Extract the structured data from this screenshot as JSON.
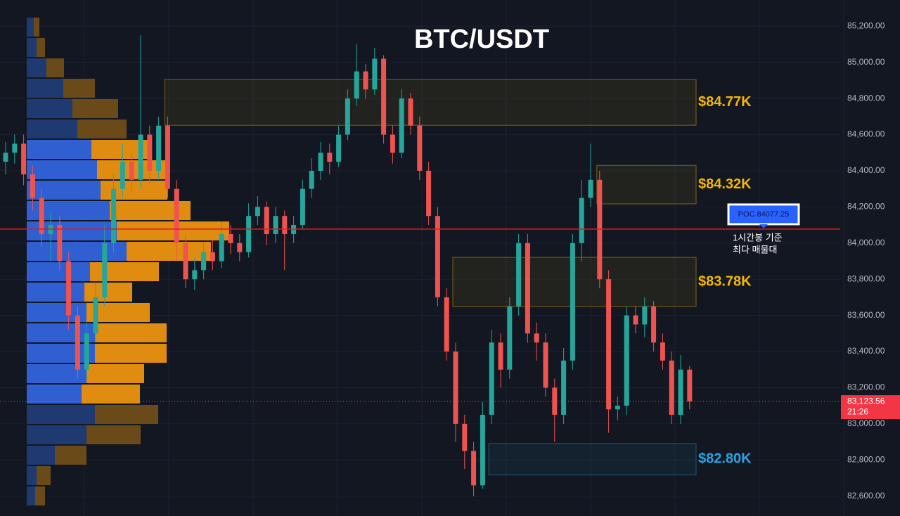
{
  "chart_data": {
    "type": "candlestick",
    "title": "BTC/USDT",
    "ylim": [
      82490,
      85345
    ],
    "yticks": [
      {
        "value": 82600,
        "label": "82,600.00"
      },
      {
        "value": 82800,
        "label": "82,800.00"
      },
      {
        "value": 83000,
        "label": "83,000.00"
      },
      {
        "value": 83200,
        "label": "83,200.00"
      },
      {
        "value": 83400,
        "label": "83,400.00"
      },
      {
        "value": 83600,
        "label": "83,600.00"
      },
      {
        "value": 83800,
        "label": "83,800.00"
      },
      {
        "value": 84000,
        "label": "84,000.00"
      },
      {
        "value": 84200,
        "label": "84,200.00"
      },
      {
        "value": 84400,
        "label": "84,400.00"
      },
      {
        "value": 84600,
        "label": "84,600.00"
      },
      {
        "value": 84800,
        "label": "84,800.00"
      },
      {
        "value": 85000,
        "label": "85,000.00"
      },
      {
        "value": 85200,
        "label": "85,200.00"
      }
    ],
    "up_color": "#26a69a",
    "down_color": "#ef5350",
    "open": [
      84450,
      84500,
      84550,
      84380,
      84250,
      84050,
      84100,
      83900,
      83600,
      83300,
      83500,
      83700,
      84000,
      84300,
      84450,
      84350,
      84600,
      84400,
      84650,
      84300,
      84000,
      83800,
      83850,
      83950,
      83900,
      84050,
      84000,
      83950,
      84150,
      84200,
      84050,
      84150,
      84050,
      84100,
      84300,
      84400,
      84500,
      84450,
      84600,
      84800,
      84950,
      84850,
      85020,
      84600,
      84500,
      84800,
      84650,
      84400,
      84150,
      83700,
      83400,
      83000,
      82850,
      82660,
      83050,
      83450,
      83300,
      83650,
      84000,
      83500,
      83450,
      83200,
      83050,
      83350,
      84000,
      84250,
      84350,
      83800,
      83080,
      83100,
      83600,
      83550,
      83650,
      83450,
      83350,
      83050,
      83300
    ],
    "high": [
      84560,
      84600,
      84600,
      84430,
      84300,
      84170,
      84150,
      83950,
      83650,
      83560,
      83780,
      84100,
      84380,
      84550,
      84500,
      85150,
      84650,
      84700,
      84700,
      84350,
      84050,
      83920,
      84000,
      84020,
      84120,
      84100,
      84050,
      84220,
      84260,
      84230,
      84200,
      84180,
      84150,
      84350,
      84470,
      84560,
      84550,
      84650,
      84850,
      85100,
      84990,
      85080,
      85040,
      84650,
      84850,
      84830,
      84700,
      84450,
      84200,
      83750,
      83450,
      83050,
      82900,
      83120,
      83520,
      83500,
      83700,
      84050,
      84050,
      83560,
      83500,
      83250,
      83420,
      84050,
      84350,
      84550,
      84400,
      83850,
      83150,
      83650,
      83650,
      83700,
      83680,
      83500,
      83400,
      83380,
      83320
    ],
    "low": [
      84380,
      84440,
      84320,
      84180,
      83980,
      83900,
      83850,
      83520,
      83250,
      83250,
      83450,
      83650,
      83950,
      84250,
      84280,
      84300,
      84330,
      84350,
      84250,
      83900,
      83750,
      83740,
      83800,
      83850,
      83860,
      83940,
      83900,
      83920,
      84100,
      83990,
      84000,
      83850,
      84000,
      84080,
      84250,
      84350,
      84380,
      84420,
      84570,
      84760,
      84800,
      84820,
      84550,
      84440,
      84470,
      84600,
      84350,
      84100,
      83650,
      83350,
      82900,
      82750,
      82600,
      82640,
      83000,
      83200,
      83250,
      83600,
      83450,
      83350,
      83150,
      82900,
      83000,
      83300,
      83900,
      84200,
      83750,
      82950,
      83020,
      83050,
      83500,
      83480,
      83400,
      83300,
      83000,
      83000,
      83080
    ],
    "close": [
      84500,
      84550,
      84380,
      84250,
      84050,
      84100,
      83900,
      83600,
      83300,
      83500,
      83700,
      84000,
      84300,
      84450,
      84350,
      84600,
      84400,
      84650,
      84300,
      84000,
      83800,
      83850,
      83950,
      83900,
      84050,
      84000,
      83950,
      84150,
      84200,
      84050,
      84150,
      84050,
      84100,
      84300,
      84400,
      84500,
      84450,
      84600,
      84800,
      84950,
      84850,
      85020,
      84600,
      84500,
      84800,
      84650,
      84400,
      84150,
      83700,
      83400,
      83000,
      82850,
      82660,
      83050,
      83450,
      83300,
      83650,
      84000,
      83500,
      83450,
      83200,
      83050,
      83350,
      84000,
      84250,
      84350,
      83800,
      83080,
      83100,
      83600,
      83550,
      83650,
      83450,
      83350,
      83050,
      83300,
      83123.56
    ],
    "volume_profile": {
      "buy": [
        10,
        14,
        28,
        52,
        65,
        72,
        92,
        100,
        105,
        118,
        128,
        142,
        90,
        82,
        85,
        97,
        97,
        85,
        78,
        97,
        85,
        40,
        14,
        12
      ],
      "sell": [
        8,
        12,
        25,
        45,
        65,
        70,
        83,
        98,
        95,
        115,
        160,
        120,
        98,
        68,
        90,
        102,
        102,
        82,
        83,
        90,
        77,
        45,
        20,
        14
      ]
    },
    "zones": [
      {
        "label": "$84.77K",
        "top": 84905,
        "bottom": 84652,
        "start": 18,
        "color": "#f5b700"
      },
      {
        "label": "$84.32K",
        "top": 84430,
        "bottom": 84217,
        "start": 66,
        "color": "#f5b700"
      },
      {
        "label": "$83.78K",
        "top": 83921,
        "bottom": 83649,
        "start": 50,
        "color": "#f5b700"
      },
      {
        "label": "$82.80K",
        "top": 82891,
        "bottom": 82717,
        "start": 54,
        "color": "#29a3e0"
      }
    ],
    "poc": {
      "value": 84077.25,
      "label": "POC  84077.25",
      "note": [
        "1시간봉 기준",
        "최다 매물대"
      ]
    },
    "last_price": {
      "value": 83123.56,
      "label": "83,123.56",
      "timer": "21:26"
    }
  }
}
